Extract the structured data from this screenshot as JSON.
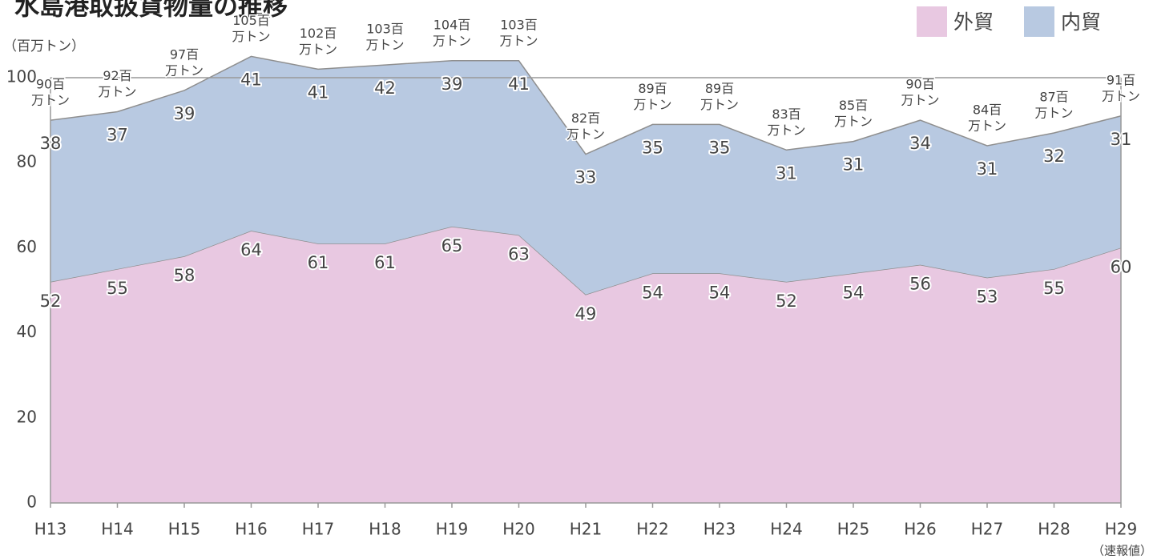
{
  "chart_data": {
    "type": "stacked-area",
    "title": "水島港取扱貨物量の推移",
    "y_label": "（百万トン）",
    "note": "（速報値）",
    "categories": [
      "H13",
      "H14",
      "H15",
      "H16",
      "H17",
      "H18",
      "H19",
      "H20",
      "H21",
      "H22",
      "H23",
      "H24",
      "H25",
      "H26",
      "H27",
      "H28",
      "H29"
    ],
    "series": [
      {
        "name": "外貿",
        "color": "#e8c8e1",
        "values": [
          52,
          55,
          58,
          64,
          61,
          61,
          65,
          63,
          49,
          54,
          54,
          52,
          54,
          56,
          53,
          55,
          60
        ]
      },
      {
        "name": "内貿",
        "color": "#b8c9e1",
        "values": [
          38,
          37,
          39,
          41,
          41,
          42,
          39,
          41,
          33,
          35,
          35,
          31,
          31,
          34,
          31,
          32,
          31
        ]
      }
    ],
    "total_labels": [
      [
        "90百",
        "万トン"
      ],
      [
        "92百",
        "万トン"
      ],
      [
        "97百",
        "万トン"
      ],
      [
        "105百",
        "万トン"
      ],
      [
        "102百",
        "万トン"
      ],
      [
        "103百",
        "万トン"
      ],
      [
        "104百",
        "万トン"
      ],
      [
        "103百",
        "万トン"
      ],
      [
        "82百",
        "万トン"
      ],
      [
        "89百",
        "万トン"
      ],
      [
        "89百",
        "万トン"
      ],
      [
        "83百",
        "万トン"
      ],
      [
        "85百",
        "万トン"
      ],
      [
        "90百",
        "万トン"
      ],
      [
        "84百",
        "万トン"
      ],
      [
        "87百",
        "万トン"
      ],
      [
        "91百",
        "万トン"
      ]
    ],
    "ylim": [
      0,
      100
    ],
    "yticks": [
      0,
      20,
      40,
      60,
      80,
      100
    ],
    "legend": "top-right"
  }
}
